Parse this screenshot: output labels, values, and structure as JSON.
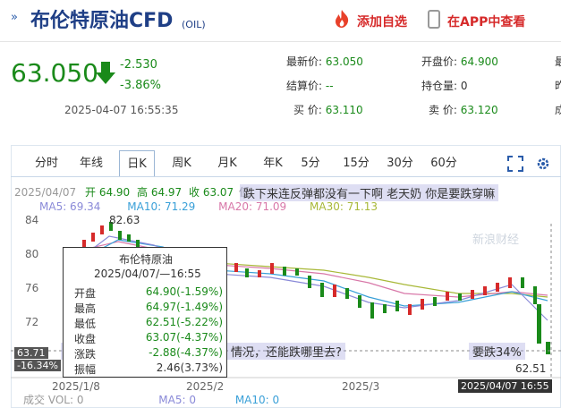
{
  "header": {
    "title": "布伦特原油CFD",
    "code": "(OIL)",
    "add_fav": "添加自选",
    "open_app": "在APP中查看"
  },
  "quote": {
    "price": "63.050",
    "change": "-2.530",
    "change_pct": "-3.86%",
    "time": "2025-04-07 16:55:35",
    "latest_label": "最新价:",
    "latest_value": "63.050",
    "open_label": "开盘价:",
    "open_value": "64.900",
    "settle_label": "结算价:",
    "settle_value": "--",
    "oi_label": "持仓量:",
    "oi_value": "0",
    "buy_label": "买  价:",
    "buy_value": "63.110",
    "sell_label": "卖  价:",
    "sell_value": "63.120",
    "edge": [
      "最",
      "昨",
      "成"
    ]
  },
  "tabs": [
    "分时",
    "年线",
    "日K",
    "周K",
    "月K",
    "年K",
    "5分",
    "15分",
    "30分",
    "60分"
  ],
  "active_tab": "日K",
  "chart_info": {
    "date": "2025/04/07",
    "open": "开 64.90",
    "high": "高 64.97",
    "close": "收 63.07",
    "low_partial": "低",
    "ma5": "MA5: 69.34",
    "ma10": "MA10: 71.29",
    "ma20": "MA20: 71.09",
    "ma30": "MA30: 71.13",
    "vol_label": "成交",
    "vol": "VOL: 0",
    "vma5": "MA5: 0",
    "vma10": "MA10: 0"
  },
  "danmaku": [
    "跌下来连反弹都没有一下啊 老天奶 你是要跌穿嘛",
    "情况，还能跌哪里去?",
    "要跌34%",
    "的石"
  ],
  "axis": {
    "y_ticks": [
      "84",
      "80",
      "76",
      "72"
    ],
    "x_ticks": [
      "2025/1/8",
      "2025/2",
      "2025/3"
    ],
    "max_label": "82.63",
    "min_label": "62.51",
    "cursor_price": "63.71",
    "cursor_pct": "-16.34%",
    "cursor_time": "2025/04/07 16:55"
  },
  "tooltip": {
    "title": "布伦特原油",
    "datetime": "2025/04/07/—16:55",
    "rows": [
      {
        "label": "开盘",
        "value": "64.90(-1.59%)"
      },
      {
        "label": "最高",
        "value": "64.97(-1.49%)"
      },
      {
        "label": "最低",
        "value": "62.51(-5.22%)"
      },
      {
        "label": "收盘",
        "value": "63.07(-4.37%)"
      },
      {
        "label": "涨跌",
        "value": "-2.88(-4.37%)"
      },
      {
        "label": "振幅",
        "value": "2.46(3.73%)"
      }
    ]
  },
  "watermark": "新浪财经",
  "colors": {
    "up": "#d62a2a",
    "down": "#1a8a1a",
    "ma5": "#8a8ad8",
    "ma10": "#3aa0d8",
    "ma20": "#d877a8",
    "ma30": "#a8b838",
    "accent": "#1f3f86"
  }
}
